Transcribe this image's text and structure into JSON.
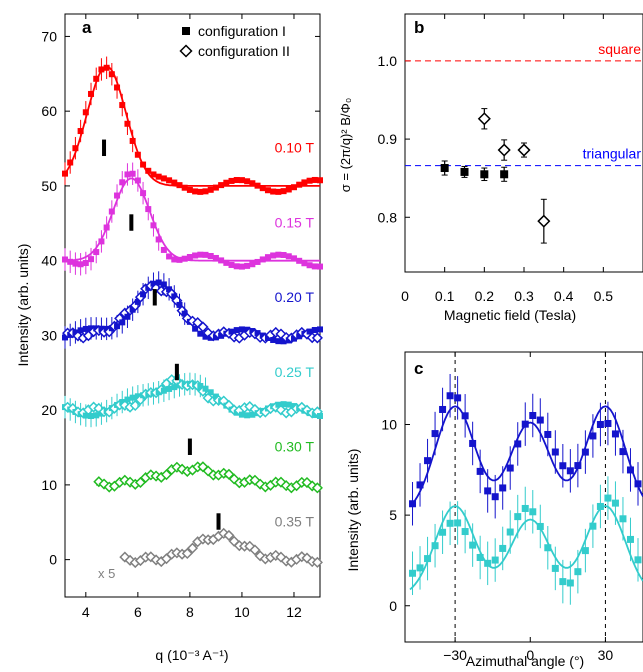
{
  "chart_data": [
    {
      "panel": "a",
      "type": "line",
      "xlabel": "q (10⁻³ A⁻¹)",
      "ylabel": "Intensity (arb. units)",
      "xlim": [
        3.2,
        13
      ],
      "ylim": [
        -5,
        73
      ],
      "xticks": [
        "4",
        "6",
        "8",
        "10",
        "12"
      ],
      "yticks": [
        "0",
        "10",
        "20",
        "30",
        "40",
        "50",
        "60",
        "70"
      ],
      "legend": {
        "position": "top-right",
        "entries": [
          {
            "label": "configuration I",
            "marker": "filled-square"
          },
          {
            "label": "configuration II",
            "marker": "open-diamond"
          }
        ]
      },
      "annotation_x5": "x 5",
      "series": [
        {
          "name": "0.10 T",
          "color": "#ff0000",
          "offset": 50,
          "amp": 16,
          "center": 4.8,
          "width": 0.75,
          "marker": "filled-square",
          "q_range": [
            3.2,
            13
          ],
          "tick_q": 4.7,
          "points": [
            [
              3.3,
              46.5
            ],
            [
              3.4,
              50.3
            ],
            [
              3.6,
              51
            ],
            [
              3.8,
              52.6
            ],
            [
              4.0,
              56.3
            ],
            [
              4.2,
              58.2
            ],
            [
              4.4,
              63.5
            ],
            [
              4.6,
              65.6
            ],
            [
              4.8,
              65.6
            ],
            [
              5.0,
              65.7
            ],
            [
              5.2,
              61.6
            ],
            [
              5.4,
              58.3
            ],
            [
              5.6,
              55
            ],
            [
              5.8,
              52.3
            ],
            [
              6.0,
              51
            ],
            [
              6.2,
              50.1
            ],
            [
              6.4,
              50.3
            ],
            [
              6.6,
              50.1
            ],
            [
              6.8,
              49.6
            ],
            [
              7.0,
              50.6
            ],
            [
              7.5,
              50
            ],
            [
              8,
              49.8
            ],
            [
              8.5,
              50.2
            ],
            [
              9,
              50
            ],
            [
              9.5,
              49.6
            ],
            [
              10,
              50.2
            ],
            [
              10.5,
              50
            ],
            [
              11,
              50
            ],
            [
              11.5,
              49.8
            ],
            [
              12,
              50
            ],
            [
              12.5,
              50
            ],
            [
              13,
              50
            ]
          ]
        },
        {
          "name": "0.15 T",
          "color": "#dd33dd",
          "offset": 40,
          "amp": 11,
          "center": 5.75,
          "width": 0.7,
          "marker": "filled-square",
          "q_range": [
            3.2,
            13
          ],
          "tick_q": 5.75,
          "points": [
            [
              3.3,
              37.2
            ],
            [
              3.4,
              39.1
            ],
            [
              3.6,
              40
            ],
            [
              3.8,
              42
            ],
            [
              4.0,
              40.5
            ],
            [
              4.2,
              41.8
            ],
            [
              4.4,
              42.5
            ],
            [
              4.6,
              43.2
            ],
            [
              4.8,
              44.5
            ],
            [
              5.0,
              44.8
            ],
            [
              5.2,
              46.5
            ],
            [
              5.4,
              48.2
            ],
            [
              5.6,
              49.9
            ],
            [
              5.8,
              50.8
            ],
            [
              6.0,
              48
            ],
            [
              6.2,
              45
            ],
            [
              6.4,
              42.5
            ],
            [
              6.6,
              40.8
            ],
            [
              6.8,
              40
            ],
            [
              7.0,
              40.5
            ],
            [
              7.5,
              40
            ],
            [
              8,
              40.2
            ],
            [
              8.5,
              40
            ],
            [
              9,
              39.8
            ],
            [
              9.5,
              40
            ],
            [
              10,
              40.1
            ],
            [
              10.5,
              40
            ],
            [
              11,
              40
            ],
            [
              11.5,
              39.9
            ],
            [
              12,
              40
            ],
            [
              12.5,
              40
            ],
            [
              13,
              40
            ]
          ]
        },
        {
          "name": "0.20 T",
          "color": "#1414cc",
          "offset": 30,
          "amp": 6.5,
          "center": 6.65,
          "width": 0.9,
          "marker": "both",
          "q_range": [
            3.2,
            13
          ],
          "tick_q": 6.65,
          "points": [
            [
              3.3,
              29.2
            ],
            [
              3.6,
              30
            ],
            [
              4.0,
              30.5
            ],
            [
              4.2,
              32.5
            ],
            [
              4.5,
              31
            ],
            [
              5.0,
              31.5
            ],
            [
              5.5,
              32.5
            ],
            [
              6.0,
              34
            ],
            [
              6.4,
              35.5
            ],
            [
              6.6,
              36.2
            ],
            [
              6.8,
              35.5
            ],
            [
              7.0,
              34.5
            ],
            [
              7.4,
              32
            ],
            [
              7.8,
              30.5
            ],
            [
              8.2,
              30
            ],
            [
              9,
              30
            ],
            [
              10,
              30
            ],
            [
              11,
              30
            ],
            [
              12,
              30
            ],
            [
              13,
              30
            ]
          ]
        },
        {
          "name": "0.25 T",
          "color": "#33cccc",
          "offset": 20,
          "amp": 3.8,
          "center": 7.5,
          "width": 1.0,
          "marker": "both",
          "q_range": [
            3.2,
            13
          ],
          "tick_q": 7.5,
          "points": [
            [
              3.3,
              20.5
            ],
            [
              3.6,
              20
            ],
            [
              4.0,
              19.5
            ],
            [
              4.5,
              20.5
            ],
            [
              5.0,
              20.5
            ],
            [
              5.5,
              21
            ],
            [
              6.0,
              21.5
            ],
            [
              6.5,
              22
            ],
            [
              7.0,
              23
            ],
            [
              7.4,
              23.8
            ],
            [
              7.8,
              23.5
            ],
            [
              8.2,
              22.5
            ],
            [
              8.6,
              21
            ],
            [
              9,
              20.2
            ],
            [
              10,
              20
            ],
            [
              11,
              20
            ],
            [
              12,
              20
            ],
            [
              13,
              20
            ]
          ]
        },
        {
          "name": "0.30 T",
          "color": "#22bb22",
          "offset": 10,
          "amp": 2.2,
          "center": 8.0,
          "width": 1.2,
          "marker": "open-diamond",
          "q_range": [
            4.4,
            13
          ],
          "tick_q": 8.0,
          "points": [
            [
              4.4,
              10
            ],
            [
              5,
              10.5
            ],
            [
              5.5,
              10.6
            ],
            [
              6,
              10.8
            ],
            [
              6.5,
              11.2
            ],
            [
              7,
              11.5
            ],
            [
              7.5,
              12
            ],
            [
              8,
              12.2
            ],
            [
              8.5,
              11.8
            ],
            [
              9,
              11.2
            ],
            [
              9.5,
              10.6
            ],
            [
              10,
              10.3
            ],
            [
              11,
              10.1
            ],
            [
              12,
              10
            ],
            [
              13,
              10
            ]
          ]
        },
        {
          "name": "0.35 T",
          "color": "#808080",
          "offset": 0,
          "amp": 3.2,
          "center": 9.1,
          "width": 0.9,
          "marker": "open-diamond",
          "q_range": [
            5.4,
            13
          ],
          "tick_q": 9.1,
          "points": [
            [
              5.4,
              0
            ],
            [
              5.7,
              1
            ],
            [
              6,
              0.5
            ],
            [
              6.3,
              1.3
            ],
            [
              6.6,
              0.8
            ],
            [
              7,
              1.5
            ],
            [
              7.5,
              1.2
            ],
            [
              8,
              2
            ],
            [
              8.5,
              2.8
            ],
            [
              9,
              3.4
            ],
            [
              9.4,
              3
            ],
            [
              9.8,
              2
            ],
            [
              10.3,
              1.2
            ],
            [
              11,
              0.6
            ],
            [
              12,
              0.1
            ],
            [
              13,
              0
            ]
          ]
        }
      ]
    },
    {
      "panel": "b",
      "type": "scatter",
      "xlabel": "Magnetic field (Tesla)",
      "ylabel": "σ = (2π/q)² B/Φ₀",
      "xlim": [
        0,
        0.6
      ],
      "ylim": [
        0.73,
        1.06
      ],
      "xticks": [
        "0",
        "0.1",
        "0.2",
        "0.3",
        "0.4",
        "0.5"
      ],
      "yticks": [
        "0.8",
        "0.9",
        "1.0"
      ],
      "reference_lines": [
        {
          "label": "square",
          "y": 1.0,
          "color": "#ff0000"
        },
        {
          "label": "triangular",
          "y": 0.866,
          "color": "#0000ff"
        }
      ],
      "configuration_I": [
        {
          "x": 0.1,
          "y": 0.863,
          "err": 0.009
        },
        {
          "x": 0.15,
          "y": 0.858,
          "err": 0.007
        },
        {
          "x": 0.2,
          "y": 0.855,
          "err": 0.008
        },
        {
          "x": 0.25,
          "y": 0.855,
          "err": 0.009
        }
      ],
      "configuration_II": [
        {
          "x": 0.2,
          "y": 0.926,
          "err": 0.013
        },
        {
          "x": 0.25,
          "y": 0.886,
          "err": 0.013
        },
        {
          "x": 0.3,
          "y": 0.886,
          "err": 0.009
        },
        {
          "x": 0.35,
          "y": 0.795,
          "err": 0.028
        }
      ]
    },
    {
      "panel": "c",
      "type": "line",
      "xlabel": "Azimuthal angle (°)",
      "ylabel": "Intensity (arb. units)",
      "xlim": [
        -50,
        45
      ],
      "ylim": [
        -2,
        14
      ],
      "xticks": [
        "−30",
        "0",
        "30"
      ],
      "yticks": [
        "0",
        "5",
        "10"
      ],
      "vlines": [
        -30,
        30
      ],
      "series": [
        {
          "color": "#1414cc",
          "marker": "filled-square",
          "base": 5,
          "amp": 6,
          "width": 8,
          "peaks": [
            -30,
            0,
            30
          ]
        },
        {
          "color": "#33cccc",
          "marker": "filled-square",
          "base": 0.5,
          "amp": 5,
          "width": 8,
          "peaks": [
            -30,
            0,
            30
          ]
        }
      ]
    }
  ]
}
